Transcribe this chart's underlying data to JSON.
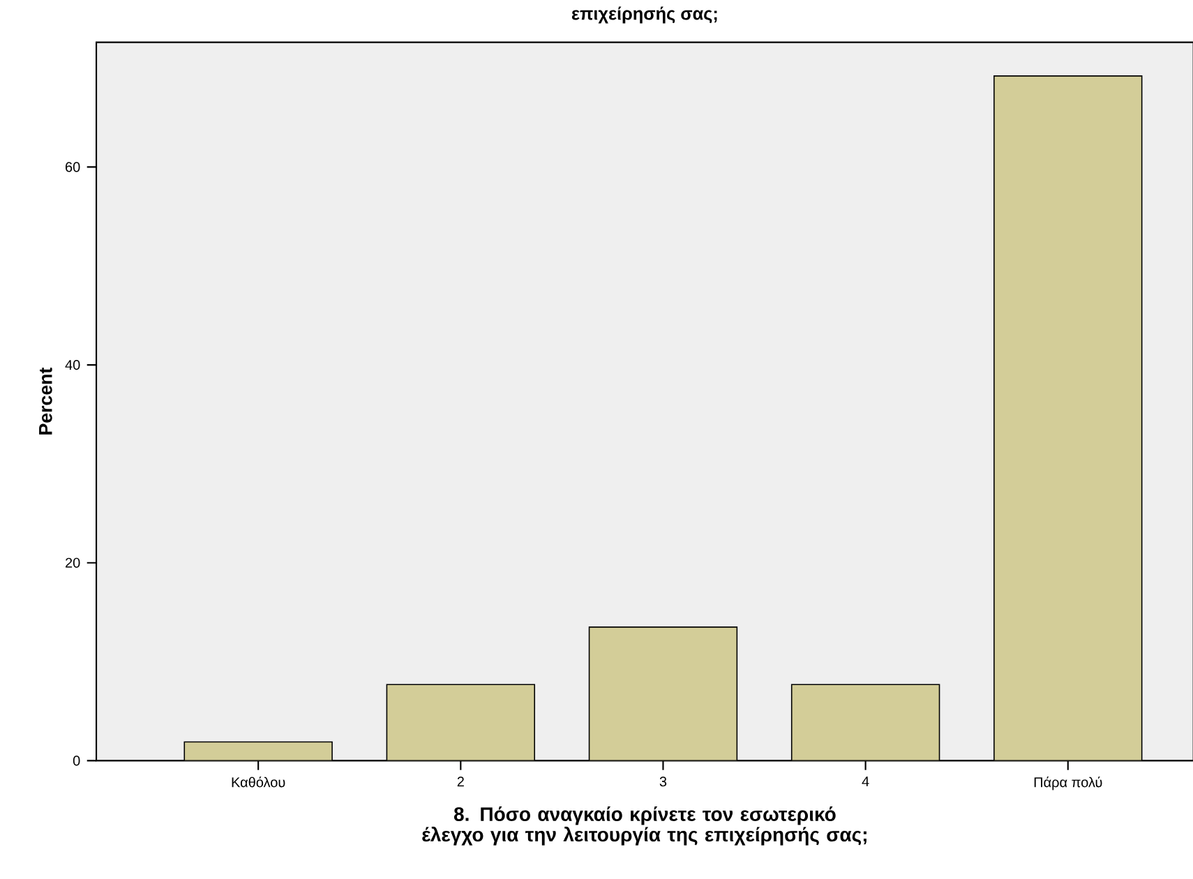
{
  "chart_data": {
    "type": "bar",
    "title": "επιχείρησής σας;",
    "xlabel": "8. Πόσο αναγκαίο κρίνετε τον εσωτερικό έλεγχο για την λειτουργία της επιχείρησής σας;",
    "ylabel": "Percent",
    "categories": [
      "Καθόλου",
      "2",
      "3",
      "4",
      "Πάρα πολύ"
    ],
    "values": [
      1.9,
      7.7,
      13.5,
      7.7,
      69.2
    ],
    "color": "#d3cd98",
    "ylim": [
      0,
      72.6
    ],
    "yticks": [
      0,
      20,
      40,
      60
    ]
  }
}
